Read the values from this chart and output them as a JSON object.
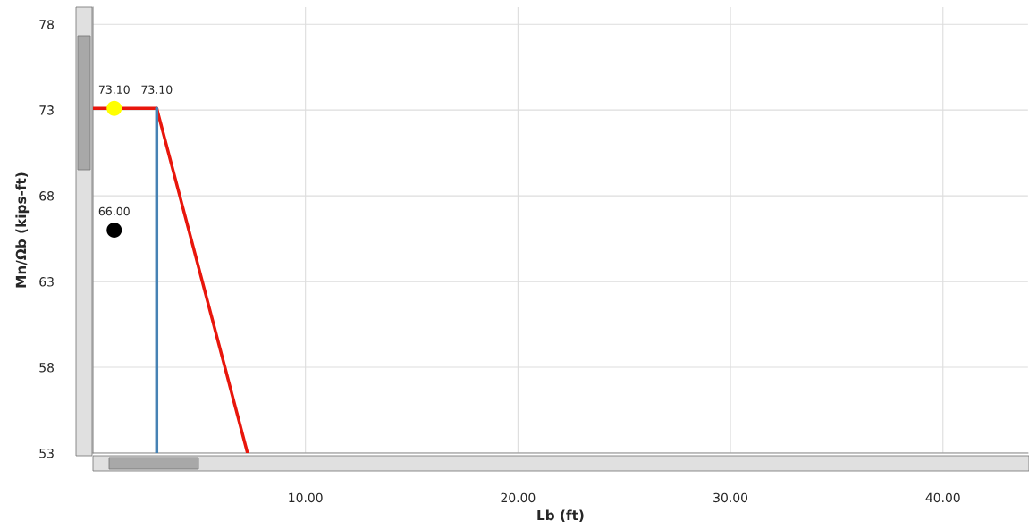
{
  "chart_data": {
    "type": "line",
    "xlabel": "Lb (ft)",
    "ylabel": "Mn/Ωb (kips-ft)",
    "xlim": [
      0,
      44
    ],
    "ylim": [
      53,
      79
    ],
    "xticks": [
      {
        "value": 10,
        "label": "10.00"
      },
      {
        "value": 20,
        "label": "20.00"
      },
      {
        "value": 30,
        "label": "30.00"
      },
      {
        "value": 40,
        "label": "40.00"
      }
    ],
    "yticks": [
      53,
      58,
      63,
      68,
      73,
      78
    ],
    "grid": true,
    "line_style": "solid",
    "series": [
      {
        "color": "#e8160c",
        "x": [
          0,
          3,
          7.27
        ],
        "values": [
          73.1,
          73.1,
          53
        ],
        "value_labels": [
          null,
          "73.10",
          null
        ]
      },
      {
        "color": "#4682b4",
        "x": [
          3,
          3
        ],
        "values": [
          53,
          73.1
        ]
      },
      {
        "type": "scatter",
        "marker": "circle",
        "color": "#ffff00",
        "x": [
          1
        ],
        "values": [
          73.1
        ],
        "value_labels": [
          "73.10"
        ]
      },
      {
        "type": "scatter",
        "marker": "circle",
        "color": "#000000",
        "x": [
          1
        ],
        "values": [
          66
        ],
        "value_labels": [
          "66.00"
        ]
      }
    ]
  }
}
